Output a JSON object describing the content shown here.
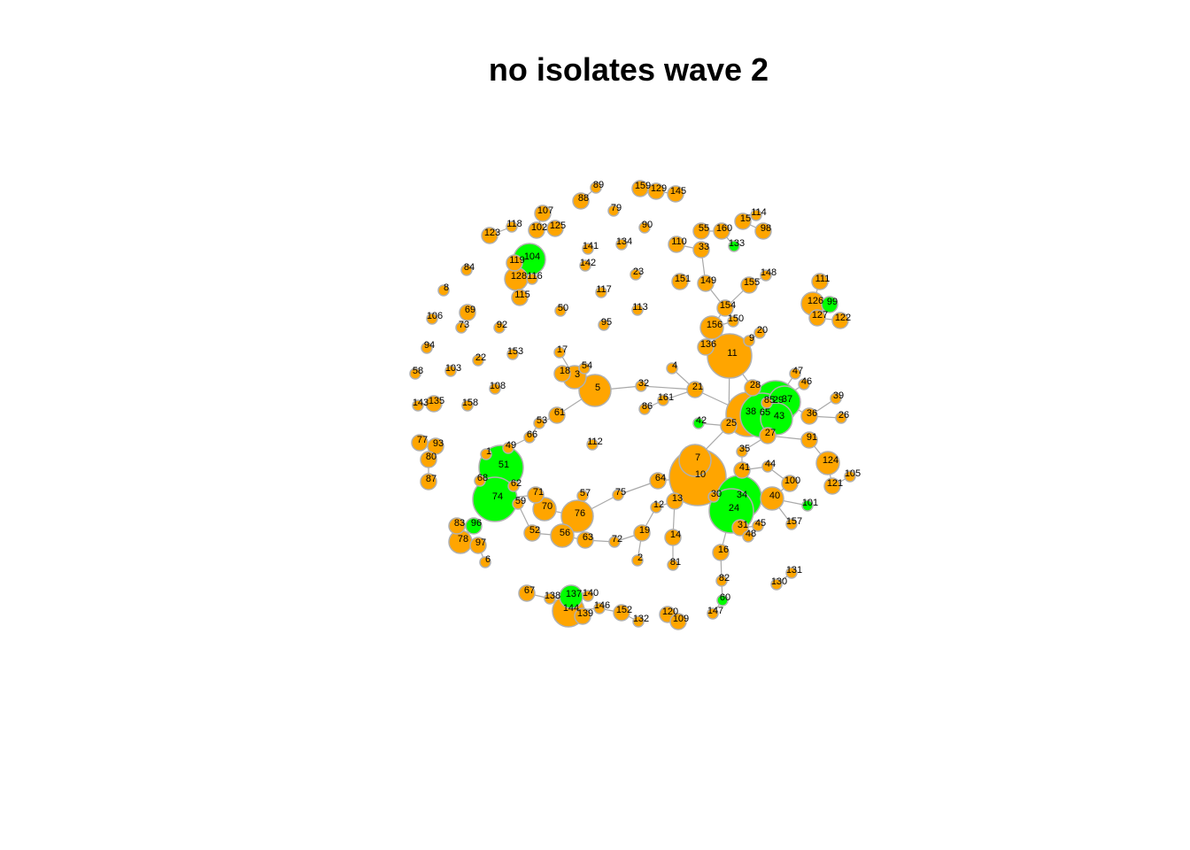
{
  "title": "no isolates wave 2",
  "colors": {
    "orange": "#ffa500",
    "green": "#00ff00",
    "edge": "#a9a9a9",
    "border": "#b0b0b0"
  },
  "nodes": [
    {
      "id": "89",
      "c": "orange",
      "s": 1
    },
    {
      "id": "88",
      "c": "orange",
      "s": 2
    },
    {
      "id": "159",
      "c": "orange",
      "s": 2
    },
    {
      "id": "129",
      "c": "orange",
      "s": 2
    },
    {
      "id": "145",
      "c": "orange",
      "s": 2
    },
    {
      "id": "79",
      "c": "orange",
      "s": 1
    },
    {
      "id": "107",
      "c": "orange",
      "s": 2
    },
    {
      "id": "114",
      "c": "orange",
      "s": 1
    },
    {
      "id": "15",
      "c": "orange",
      "s": 2
    },
    {
      "id": "118",
      "c": "orange",
      "s": 1
    },
    {
      "id": "102",
      "c": "orange",
      "s": 2
    },
    {
      "id": "125",
      "c": "orange",
      "s": 2
    },
    {
      "id": "90",
      "c": "orange",
      "s": 1
    },
    {
      "id": "55",
      "c": "orange",
      "s": 2
    },
    {
      "id": "160",
      "c": "orange",
      "s": 2
    },
    {
      "id": "98",
      "c": "orange",
      "s": 2
    },
    {
      "id": "123",
      "c": "orange",
      "s": 2
    },
    {
      "id": "141",
      "c": "orange",
      "s": 1
    },
    {
      "id": "134",
      "c": "orange",
      "s": 1
    },
    {
      "id": "110",
      "c": "orange",
      "s": 2
    },
    {
      "id": "33",
      "c": "orange",
      "s": 2
    },
    {
      "id": "133",
      "c": "green",
      "s": 1
    },
    {
      "id": "104",
      "c": "green",
      "s": 4
    },
    {
      "id": "119",
      "c": "orange",
      "s": 2
    },
    {
      "id": "142",
      "c": "orange",
      "s": 1
    },
    {
      "id": "84",
      "c": "orange",
      "s": 1
    },
    {
      "id": "23",
      "c": "orange",
      "s": 1
    },
    {
      "id": "148",
      "c": "orange",
      "s": 1
    },
    {
      "id": "128",
      "c": "orange",
      "s": 3
    },
    {
      "id": "116",
      "c": "orange",
      "s": 1
    },
    {
      "id": "151",
      "c": "orange",
      "s": 2
    },
    {
      "id": "149",
      "c": "orange",
      "s": 2
    },
    {
      "id": "155",
      "c": "orange",
      "s": 2
    },
    {
      "id": "111",
      "c": "orange",
      "s": 2
    },
    {
      "id": "8",
      "c": "orange",
      "s": 1
    },
    {
      "id": "117",
      "c": "orange",
      "s": 1
    },
    {
      "id": "115",
      "c": "orange",
      "s": 2
    },
    {
      "id": "126",
      "c": "orange",
      "s": 3
    },
    {
      "id": "99",
      "c": "green",
      "s": 2
    },
    {
      "id": "154",
      "c": "orange",
      "s": 2
    },
    {
      "id": "69",
      "c": "orange",
      "s": 2
    },
    {
      "id": "50",
      "c": "orange",
      "s": 1
    },
    {
      "id": "113",
      "c": "orange",
      "s": 1
    },
    {
      "id": "106",
      "c": "orange",
      "s": 1
    },
    {
      "id": "150",
      "c": "orange",
      "s": 1
    },
    {
      "id": "127",
      "c": "orange",
      "s": 2
    },
    {
      "id": "122",
      "c": "orange",
      "s": 2
    },
    {
      "id": "73",
      "c": "orange",
      "s": 1
    },
    {
      "id": "92",
      "c": "orange",
      "s": 1
    },
    {
      "id": "95",
      "c": "orange",
      "s": 1
    },
    {
      "id": "156",
      "c": "orange",
      "s": 3
    },
    {
      "id": "20",
      "c": "orange",
      "s": 1
    },
    {
      "id": "9",
      "c": "orange",
      "s": 1
    },
    {
      "id": "94",
      "c": "orange",
      "s": 1
    },
    {
      "id": "136",
      "c": "orange",
      "s": 2
    },
    {
      "id": "153",
      "c": "orange",
      "s": 1
    },
    {
      "id": "17",
      "c": "orange",
      "s": 1
    },
    {
      "id": "11",
      "c": "orange",
      "s": 5
    },
    {
      "id": "22",
      "c": "orange",
      "s": 1
    },
    {
      "id": "103",
      "c": "orange",
      "s": 1
    },
    {
      "id": "54",
      "c": "orange",
      "s": 1
    },
    {
      "id": "58",
      "c": "orange",
      "s": 1
    },
    {
      "id": "4",
      "c": "orange",
      "s": 1
    },
    {
      "id": "18",
      "c": "orange",
      "s": 2
    },
    {
      "id": "3",
      "c": "orange",
      "s": 3
    },
    {
      "id": "47",
      "c": "orange",
      "s": 1
    },
    {
      "id": "108",
      "c": "orange",
      "s": 1
    },
    {
      "id": "32",
      "c": "orange",
      "s": 1
    },
    {
      "id": "28",
      "c": "orange",
      "s": 2
    },
    {
      "id": "29",
      "c": "green",
      "s": 5
    },
    {
      "id": "46",
      "c": "orange",
      "s": 1
    },
    {
      "id": "5",
      "c": "orange",
      "s": 4
    },
    {
      "id": "21",
      "c": "orange",
      "s": 2
    },
    {
      "id": "143",
      "c": "orange",
      "s": 1
    },
    {
      "id": "135",
      "c": "orange",
      "s": 2
    },
    {
      "id": "158",
      "c": "orange",
      "s": 1
    },
    {
      "id": "161",
      "c": "orange",
      "s": 1
    },
    {
      "id": "39",
      "c": "orange",
      "s": 1
    },
    {
      "id": "85",
      "c": "orange",
      "s": 1
    },
    {
      "id": "37",
      "c": "green",
      "s": 4
    },
    {
      "id": "86",
      "c": "orange",
      "s": 1
    },
    {
      "id": "38",
      "c": "orange",
      "s": 5
    },
    {
      "id": "65",
      "c": "green",
      "s": 5
    },
    {
      "id": "36",
      "c": "orange",
      "s": 2
    },
    {
      "id": "26",
      "c": "orange",
      "s": 1
    },
    {
      "id": "43",
      "c": "green",
      "s": 4
    },
    {
      "id": "61",
      "c": "orange",
      "s": 2
    },
    {
      "id": "42",
      "c": "green",
      "s": 1
    },
    {
      "id": "53",
      "c": "orange",
      "s": 1
    },
    {
      "id": "25",
      "c": "orange",
      "s": 2
    },
    {
      "id": "77",
      "c": "orange",
      "s": 2
    },
    {
      "id": "27",
      "c": "orange",
      "s": 2
    },
    {
      "id": "66",
      "c": "orange",
      "s": 1
    },
    {
      "id": "91",
      "c": "orange",
      "s": 2
    },
    {
      "id": "93",
      "c": "orange",
      "s": 2
    },
    {
      "id": "112",
      "c": "orange",
      "s": 1
    },
    {
      "id": "49",
      "c": "orange",
      "s": 1
    },
    {
      "id": "35",
      "c": "orange",
      "s": 1
    },
    {
      "id": "1",
      "c": "orange",
      "s": 1
    },
    {
      "id": "51",
      "c": "green",
      "s": 5
    },
    {
      "id": "80",
      "c": "orange",
      "s": 2
    },
    {
      "id": "7",
      "c": "orange",
      "s": 4
    },
    {
      "id": "124",
      "c": "orange",
      "s": 3
    },
    {
      "id": "44",
      "c": "orange",
      "s": 1
    },
    {
      "id": "41",
      "c": "orange",
      "s": 2
    },
    {
      "id": "10",
      "c": "orange",
      "s": 6
    },
    {
      "id": "105",
      "c": "orange",
      "s": 1
    },
    {
      "id": "68",
      "c": "orange",
      "s": 1
    },
    {
      "id": "62",
      "c": "orange",
      "s": 1
    },
    {
      "id": "87",
      "c": "orange",
      "s": 2
    },
    {
      "id": "64",
      "c": "orange",
      "s": 2
    },
    {
      "id": "100",
      "c": "orange",
      "s": 2
    },
    {
      "id": "121",
      "c": "orange",
      "s": 2
    },
    {
      "id": "71",
      "c": "orange",
      "s": 2
    },
    {
      "id": "57",
      "c": "orange",
      "s": 1
    },
    {
      "id": "75",
      "c": "orange",
      "s": 1
    },
    {
      "id": "74",
      "c": "green",
      "s": 5
    },
    {
      "id": "34",
      "c": "green",
      "s": 5
    },
    {
      "id": "40",
      "c": "orange",
      "s": 3
    },
    {
      "id": "59",
      "c": "orange",
      "s": 1
    },
    {
      "id": "30",
      "c": "orange",
      "s": 1
    },
    {
      "id": "13",
      "c": "orange",
      "s": 2
    },
    {
      "id": "101",
      "c": "green",
      "s": 1
    },
    {
      "id": "12",
      "c": "orange",
      "s": 1
    },
    {
      "id": "70",
      "c": "orange",
      "s": 3
    },
    {
      "id": "24",
      "c": "green",
      "s": 5
    },
    {
      "id": "76",
      "c": "orange",
      "s": 4
    },
    {
      "id": "83",
      "c": "orange",
      "s": 2
    },
    {
      "id": "96",
      "c": "green",
      "s": 2
    },
    {
      "id": "157",
      "c": "orange",
      "s": 1
    },
    {
      "id": "31",
      "c": "orange",
      "s": 2
    },
    {
      "id": "45",
      "c": "orange",
      "s": 1
    },
    {
      "id": "52",
      "c": "orange",
      "s": 2
    },
    {
      "id": "19",
      "c": "orange",
      "s": 2
    },
    {
      "id": "56",
      "c": "orange",
      "s": 3
    },
    {
      "id": "48",
      "c": "orange",
      "s": 1
    },
    {
      "id": "78",
      "c": "orange",
      "s": 3
    },
    {
      "id": "63",
      "c": "orange",
      "s": 2
    },
    {
      "id": "72",
      "c": "orange",
      "s": 1
    },
    {
      "id": "97",
      "c": "orange",
      "s": 2
    },
    {
      "id": "14",
      "c": "orange",
      "s": 2
    },
    {
      "id": "16",
      "c": "orange",
      "s": 2
    },
    {
      "id": "6",
      "c": "orange",
      "s": 1
    },
    {
      "id": "2",
      "c": "orange",
      "s": 1
    },
    {
      "id": "81",
      "c": "orange",
      "s": 1
    },
    {
      "id": "82",
      "c": "orange",
      "s": 1
    },
    {
      "id": "131",
      "c": "orange",
      "s": 1
    },
    {
      "id": "130",
      "c": "orange",
      "s": 1
    },
    {
      "id": "67",
      "c": "orange",
      "s": 2
    },
    {
      "id": "138",
      "c": "orange",
      "s": 1
    },
    {
      "id": "137",
      "c": "green",
      "s": 3
    },
    {
      "id": "140",
      "c": "orange",
      "s": 1
    },
    {
      "id": "60",
      "c": "green",
      "s": 1
    },
    {
      "id": "144",
      "c": "orange",
      "s": 4
    },
    {
      "id": "146",
      "c": "orange",
      "s": 1
    },
    {
      "id": "139",
      "c": "orange",
      "s": 2
    },
    {
      "id": "152",
      "c": "orange",
      "s": 2
    },
    {
      "id": "147",
      "c": "orange",
      "s": 1
    },
    {
      "id": "120",
      "c": "orange",
      "s": 2
    },
    {
      "id": "132",
      "c": "orange",
      "s": 1
    },
    {
      "id": "109",
      "c": "orange",
      "s": 2
    }
  ],
  "edges": [
    [
      "89",
      "88"
    ],
    [
      "159",
      "129"
    ],
    [
      "129",
      "145"
    ],
    [
      "114",
      "15"
    ],
    [
      "15",
      "98"
    ],
    [
      "107",
      "102"
    ],
    [
      "102",
      "125"
    ],
    [
      "118",
      "123"
    ],
    [
      "55",
      "160"
    ],
    [
      "160",
      "133"
    ],
    [
      "110",
      "33"
    ],
    [
      "33",
      "149"
    ],
    [
      "104",
      "119"
    ],
    [
      "104",
      "128"
    ],
    [
      "128",
      "116"
    ],
    [
      "128",
      "115"
    ],
    [
      "148",
      "155"
    ],
    [
      "155",
      "154"
    ],
    [
      "149",
      "154"
    ],
    [
      "111",
      "126"
    ],
    [
      "126",
      "99"
    ],
    [
      "99",
      "127"
    ],
    [
      "127",
      "122"
    ],
    [
      "154",
      "156"
    ],
    [
      "150",
      "156"
    ],
    [
      "156",
      "11"
    ],
    [
      "136",
      "11"
    ],
    [
      "20",
      "9"
    ],
    [
      "9",
      "11"
    ],
    [
      "11",
      "28"
    ],
    [
      "11",
      "25"
    ],
    [
      "17",
      "3"
    ],
    [
      "18",
      "3"
    ],
    [
      "3",
      "54"
    ],
    [
      "3",
      "5"
    ],
    [
      "5",
      "32"
    ],
    [
      "32",
      "21"
    ],
    [
      "4",
      "21"
    ],
    [
      "21",
      "38"
    ],
    [
      "161",
      "21"
    ],
    [
      "86",
      "161"
    ],
    [
      "28",
      "29"
    ],
    [
      "29",
      "47"
    ],
    [
      "29",
      "46"
    ],
    [
      "29",
      "37"
    ],
    [
      "37",
      "36"
    ],
    [
      "36",
      "39"
    ],
    [
      "36",
      "26"
    ],
    [
      "85",
      "65"
    ],
    [
      "65",
      "38"
    ],
    [
      "65",
      "43"
    ],
    [
      "43",
      "27"
    ],
    [
      "38",
      "25"
    ],
    [
      "42",
      "25"
    ],
    [
      "25",
      "7"
    ],
    [
      "27",
      "35"
    ],
    [
      "27",
      "91"
    ],
    [
      "91",
      "124"
    ],
    [
      "124",
      "121"
    ],
    [
      "121",
      "105"
    ],
    [
      "35",
      "41"
    ],
    [
      "41",
      "44"
    ],
    [
      "44",
      "100"
    ],
    [
      "41",
      "34"
    ],
    [
      "34",
      "24"
    ],
    [
      "34",
      "40"
    ],
    [
      "40",
      "100"
    ],
    [
      "40",
      "101"
    ],
    [
      "40",
      "157"
    ],
    [
      "24",
      "31"
    ],
    [
      "31",
      "45"
    ],
    [
      "31",
      "48"
    ],
    [
      "24",
      "16"
    ],
    [
      "16",
      "82"
    ],
    [
      "82",
      "60"
    ],
    [
      "60",
      "147"
    ],
    [
      "61",
      "5"
    ],
    [
      "53",
      "61"
    ],
    [
      "66",
      "53"
    ],
    [
      "49",
      "66"
    ],
    [
      "1",
      "51"
    ],
    [
      "49",
      "51"
    ],
    [
      "51",
      "68"
    ],
    [
      "51",
      "74"
    ],
    [
      "62",
      "74"
    ],
    [
      "74",
      "59"
    ],
    [
      "74",
      "71"
    ],
    [
      "71",
      "70"
    ],
    [
      "70",
      "76"
    ],
    [
      "57",
      "76"
    ],
    [
      "76",
      "75"
    ],
    [
      "75",
      "64"
    ],
    [
      "64",
      "10"
    ],
    [
      "7",
      "10"
    ],
    [
      "10",
      "30"
    ],
    [
      "30",
      "24"
    ],
    [
      "13",
      "10"
    ],
    [
      "12",
      "13"
    ],
    [
      "19",
      "12"
    ],
    [
      "14",
      "13"
    ],
    [
      "14",
      "81"
    ],
    [
      "2",
      "19"
    ],
    [
      "72",
      "19"
    ],
    [
      "63",
      "72"
    ],
    [
      "56",
      "63"
    ],
    [
      "52",
      "56"
    ],
    [
      "59",
      "52"
    ],
    [
      "76",
      "56"
    ],
    [
      "83",
      "96"
    ],
    [
      "96",
      "78"
    ],
    [
      "78",
      "97"
    ],
    [
      "97",
      "6"
    ],
    [
      "77",
      "93"
    ],
    [
      "93",
      "80"
    ],
    [
      "80",
      "87"
    ],
    [
      "143",
      "135"
    ],
    [
      "131",
      "130"
    ],
    [
      "67",
      "138"
    ],
    [
      "138",
      "137"
    ],
    [
      "137",
      "140"
    ],
    [
      "137",
      "144"
    ],
    [
      "144",
      "139"
    ],
    [
      "144",
      "146"
    ],
    [
      "146",
      "152"
    ],
    [
      "152",
      "132"
    ],
    [
      "120",
      "109"
    ]
  ]
}
